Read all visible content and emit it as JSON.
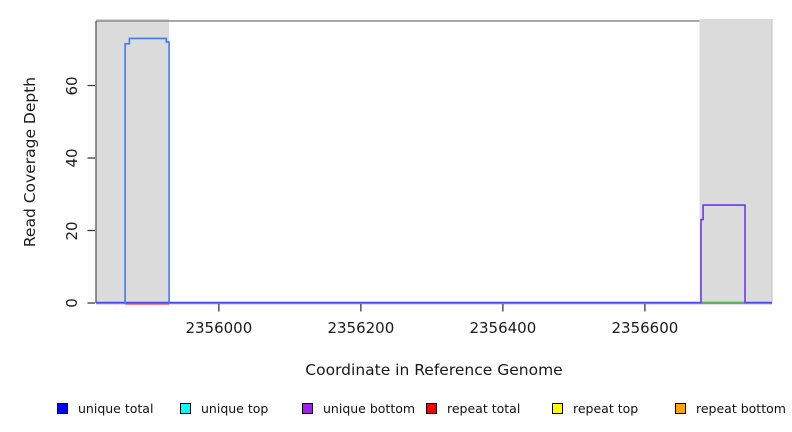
{
  "chart_data": {
    "type": "line",
    "title": "",
    "xlabel": "Coordinate in Reference Genome",
    "ylabel": "Read Coverage Depth",
    "xlim": [
      2355827,
      2356779
    ],
    "ylim": [
      0,
      77.8
    ],
    "x_ticks": [
      2356000,
      2356200,
      2356400,
      2356600
    ],
    "y_ticks": [
      0,
      20,
      40,
      60
    ],
    "grid": false,
    "legend_position": "bottom",
    "colors": {
      "masked_region": "#DBDBDB",
      "frame_top": "#8C8C8C",
      "frame_left": "#5A5A5A",
      "frame_right": "#C2C2C2",
      "tick": "#3A3A3A"
    },
    "masked_regions": [
      {
        "name": "left-masked-region",
        "start": 2355827,
        "end": 2355930
      },
      {
        "name": "right-masked-region",
        "start": 2356677,
        "end": 2356779
      }
    ],
    "baseline": {
      "note": "zero-depth coverage lines spanning whole plot",
      "span": [
        2355827,
        2356779
      ],
      "colors": [
        "#4A4AEF",
        "#9268F2"
      ]
    },
    "baseline_segments": [
      {
        "name": "repeat-total-zero-left",
        "color": "#EF3B3B",
        "start": 2355868,
        "end": 2355930
      },
      {
        "name": "overlap-zero-right",
        "color": "#5CB85C",
        "start": 2356679,
        "end": 2356741
      }
    ],
    "peaks": [
      {
        "name": "unique-coverage-left-peak",
        "display_color": "#3F7CF2",
        "max_depth": 73,
        "points": [
          [
            2355868,
            0
          ],
          [
            2355868,
            71.5
          ],
          [
            2355874,
            71.5
          ],
          [
            2355874,
            73
          ],
          [
            2355926,
            73
          ],
          [
            2355926,
            72
          ],
          [
            2355930,
            72
          ],
          [
            2355930,
            0
          ]
        ]
      },
      {
        "name": "unique-coverage-right-peak",
        "display_color": "#6A3AEE",
        "max_depth": 27,
        "points": [
          [
            2356679,
            0
          ],
          [
            2356679,
            23
          ],
          [
            2356682,
            23
          ],
          [
            2356682,
            27
          ],
          [
            2356741,
            27
          ],
          [
            2356741,
            0
          ]
        ]
      }
    ]
  },
  "legend": {
    "items": [
      {
        "label": "unique total",
        "color": "#0000FF"
      },
      {
        "label": "unique top",
        "color": "#00FFFF"
      },
      {
        "label": "unique bottom",
        "color": "#A020F0"
      },
      {
        "label": "repeat total",
        "color": "#FF0000"
      },
      {
        "label": "repeat top",
        "color": "#FFFF00"
      },
      {
        "label": "repeat bottom",
        "color": "#FFA500"
      }
    ]
  }
}
